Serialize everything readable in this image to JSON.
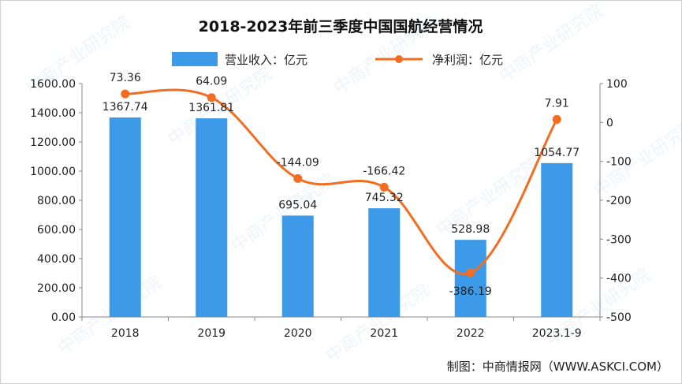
{
  "chart_data": {
    "type": "bar+line",
    "title": "2018-2023年前三季度中国国航经营情况",
    "categories": [
      "2018",
      "2019",
      "2020",
      "2021",
      "2022",
      "2023.1-9"
    ],
    "series": [
      {
        "name": "营业收入：亿元",
        "type": "bar",
        "axis": "left",
        "values": [
          1367.74,
          1361.81,
          695.04,
          745.32,
          528.98,
          1054.77
        ],
        "labels": [
          "1367.74",
          "1361.81",
          "695.04",
          "745.32",
          "528.98",
          "1054.77"
        ],
        "color": "#3d9ae8"
      },
      {
        "name": "净利润：亿元",
        "type": "line",
        "axis": "right",
        "values": [
          73.36,
          64.09,
          -144.09,
          -166.42,
          -386.19,
          7.91
        ],
        "labels": [
          "73.36",
          "64.09",
          "-144.09",
          "-166.42",
          "-386.19",
          "7.91"
        ],
        "color": "#f26d21"
      }
    ],
    "left_axis": {
      "ylim": [
        0,
        1600
      ],
      "ticks": [
        0,
        200,
        400,
        600,
        800,
        1000,
        1200,
        1400,
        1600
      ],
      "tick_labels": [
        "0.00",
        "200.00",
        "400.00",
        "600.00",
        "800.00",
        "1000.00",
        "1200.00",
        "1400.00",
        "1600.00"
      ]
    },
    "right_axis": {
      "ylim": [
        -500,
        100
      ],
      "ticks": [
        -500,
        -400,
        -300,
        -200,
        -100,
        0,
        100
      ],
      "tick_labels": [
        "-500",
        "-400",
        "-300",
        "-200",
        "-100",
        "0",
        "100"
      ]
    },
    "grid": false,
    "legend_placement": "top-center"
  },
  "source": "制图：中商情报网（WWW.ASKCI.COM）",
  "watermark": "中商产业研究院"
}
